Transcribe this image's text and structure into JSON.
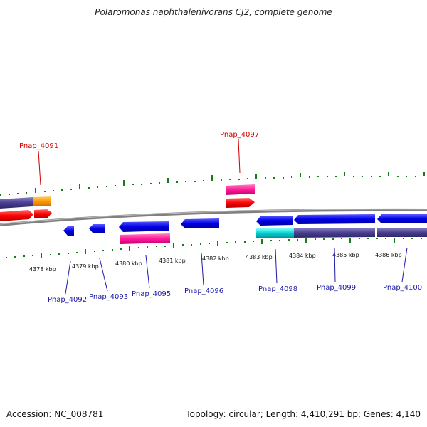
{
  "title": "Polaromonas naphthalenivorans CJ2, complete genome",
  "footer": {
    "accession": "Accession: NC_008781",
    "topology": "Topology: circular; Length: 4,410,291 bp; Genes: 4,140"
  },
  "ruler": {
    "labels": [
      "4378 kbp",
      "4379 kbp",
      "4380 kbp",
      "4381 kbp",
      "4382 kbp",
      "4383 kbp",
      "4384 kbp",
      "4385 kbp",
      "4386 kbp"
    ]
  },
  "genes": {
    "top": [
      "Pnap_4091",
      "Pnap_4097"
    ],
    "bottom": [
      "Pnap_4092",
      "Pnap_4093",
      "Pnap_4095",
      "Pnap_4096",
      "Pnap_4098",
      "Pnap_4099",
      "Pnap_4100"
    ]
  },
  "colors": {
    "forward_cds": "#ff0000",
    "reverse_cds": "#0000e6",
    "cog_purple": "#4a3f8f",
    "cog_orange": "#ff9900",
    "cog_pink": "#ff1a99",
    "cog_cyan": "#00cccc",
    "tick": "#1a7a1a",
    "backbone": "#808080"
  }
}
